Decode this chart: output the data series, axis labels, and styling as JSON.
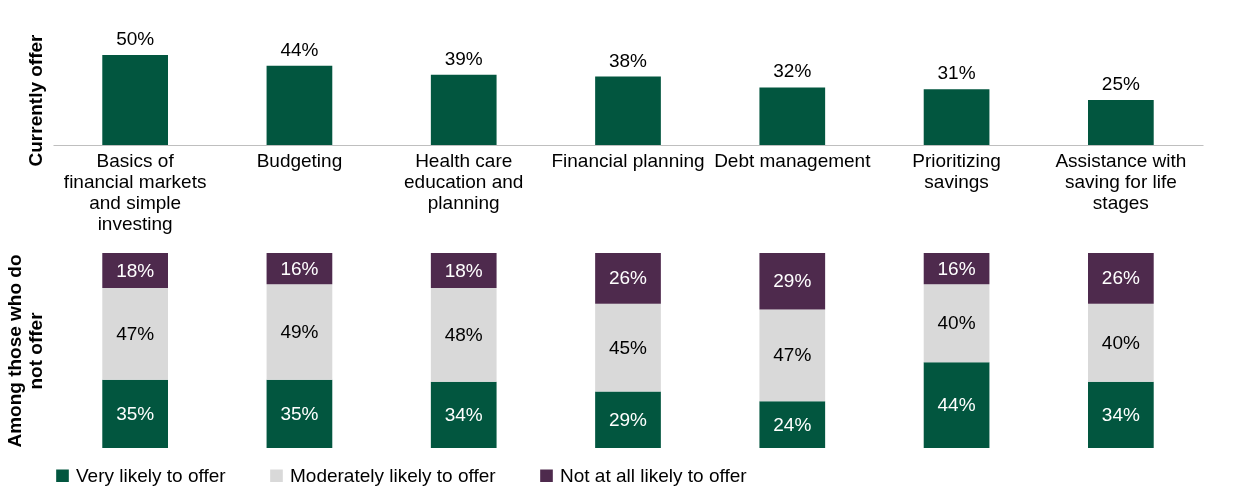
{
  "chart_data": [
    {
      "type": "bar",
      "ylabel": "Currently offer",
      "categories": [
        "Basics of financial markets and simple investing",
        "Budgeting",
        "Health care education and planning",
        "Financial planning",
        "Debt management",
        "Prioritizing savings",
        "Assistance with saving for life stages"
      ],
      "values": [
        50,
        44,
        39,
        38,
        32,
        31,
        25
      ],
      "color": "#02563f",
      "value_labels": [
        "50%",
        "44%",
        "39%",
        "38%",
        "32%",
        "31%",
        "25%"
      ]
    },
    {
      "type": "bar",
      "stacked": true,
      "ylabel": "Among those who do not offer",
      "categories": [
        null,
        null,
        null,
        null,
        null,
        null,
        null
      ],
      "legend": "bottom",
      "series": [
        {
          "name": "Very likely to offer",
          "color": "#02563f",
          "values": [
            35,
            35,
            34,
            29,
            24,
            44,
            34
          ],
          "value_labels": [
            "35%",
            "35%",
            "34%",
            "29%",
            "24%",
            "44%",
            "34%"
          ]
        },
        {
          "name": "Moderately likely to offer",
          "color": "#d9d9d9",
          "values": [
            47,
            49,
            48,
            45,
            47,
            40,
            40
          ],
          "value_labels": [
            "47%",
            "49%",
            "48%",
            "45%",
            "47%",
            "40%",
            "40%"
          ]
        },
        {
          "name": "Not at all likely to offer",
          "color": "#4e2a4d",
          "values": [
            18,
            16,
            18,
            26,
            29,
            16,
            26
          ],
          "value_labels": [
            "18%",
            "16%",
            "18%",
            "26%",
            "29%",
            "16%",
            "26%"
          ]
        }
      ]
    }
  ]
}
